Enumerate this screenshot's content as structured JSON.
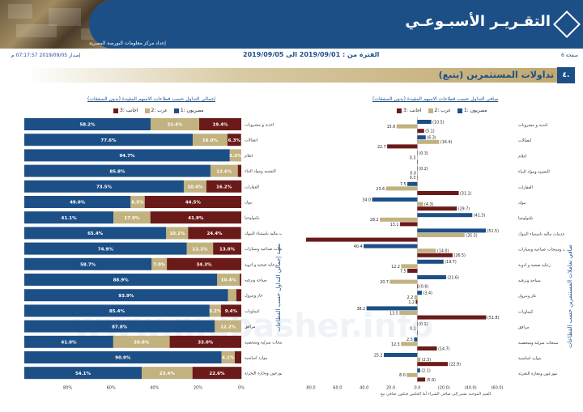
{
  "header": {
    "title": "التقـريـر الأسبـوعـي",
    "subtitle": "إعداد مركز معلومات البورصة المصرية",
    "period": "الفترة من : 2019/09/01 الى 2019/09/05",
    "issued": "إصدار 2019/09/05 07:17:57 م",
    "page": "صفحة 6"
  },
  "section": {
    "number": "٤.",
    "title": "تداولات المستثمرين (يتبع)"
  },
  "watermark": "www.mubasher.info",
  "footnote": "القيم الموجبة تشير إلى صافي الشراء أما العكس فيكون صافي بيع.",
  "left_vlabel": "نسبة إجمالي التداول حسب القطاعات",
  "right_vlabel": "صافي تعاملات المستثمرين حسب القطاعات",
  "colors": {
    "egyptians": "#1d4f87",
    "arabs": "#c2b280",
    "foreigners": "#6b1a1a"
  },
  "chart_data": [
    {
      "type": "bar",
      "title": "إجمالي التداول حسب قطاعات الاسهم المقيدة (بدون الصفقات)",
      "orientation": "horizontal",
      "stacked": true,
      "legend": [
        "مصريون :1",
        "عرب :2",
        "اجانب :3"
      ],
      "categories": [
        "اغذية و مشروبات",
        "اتصالات",
        "اعلام",
        "التشييد ومواد البناء",
        "العقارات",
        "بنوك",
        "تكنولوجيا",
        "خدمات مالية باستثناء البنوك",
        "خدمات ومنتجات صناعية وسيارات",
        "رعاية صحية و ادوية",
        "سياحة وترفيه",
        "غاز وبترول",
        "كيماويات",
        "مرافق",
        "منتجات منزلية وشخصية",
        "موارد اساسية",
        "موزعون وتجارة التجزئة"
      ],
      "series": [
        {
          "name": "مصريون :1",
          "values": [
            58.2,
            77.6,
            94.7,
            85.8,
            73.5,
            49.0,
            41.1,
            65.4,
            74.9,
            58.7,
            88.9,
            93.9,
            85.4,
            87.8,
            41.0,
            90.9,
            54.1
          ]
        },
        {
          "name": "عرب :2",
          "values": [
            22.4,
            16.0,
            5.3,
            12.6,
            10.4,
            6.5,
            17.0,
            10.1,
            12.1,
            7.0,
            10.4,
            3.8,
            5.2,
            12.2,
            26.0,
            6.1,
            23.4
          ]
        },
        {
          "name": "اجانب :3",
          "values": [
            19.4,
            6.3,
            0.0,
            1.6,
            16.2,
            44.5,
            41.9,
            24.4,
            13.0,
            34.3,
            0.7,
            2.3,
            9.4,
            0.0,
            33.0,
            3.0,
            22.6
          ]
        }
      ],
      "xticks": [
        "80%",
        "60%",
        "40%",
        "20%",
        "0%"
      ],
      "xlim": [
        0,
        100
      ]
    },
    {
      "type": "bar",
      "title": "صافي التداول حسب قطاعات الاسهم المقيدة (بدون الصفقات)",
      "orientation": "horizontal",
      "legend": [
        "مصريون :1",
        "عرب :2",
        "اجانب :3"
      ],
      "categories": [
        "اغذية و مشروبات",
        "اتصالات",
        "اعلام",
        "التشييد ومواد البناء",
        "العقارات",
        "بنوك",
        "تكنولوجيا",
        "خدمات مالية باستثناء البنوك",
        "خدمات ومنتجات صناعية وسيارات",
        "رعاية صحية و ادوية",
        "سياحة وترفيه",
        "غاز وبترول",
        "كيماويات",
        "مرافق",
        "منتجات منزلية وشخصية",
        "موارد اساسية",
        "موزعون وتجارة التجزئة"
      ],
      "series": [
        {
          "name": "مصريون :1",
          "values": [
            -10.5,
            -6.3,
            -0.3,
            -0.2,
            7.5,
            34.0,
            -41.3,
            -51.5,
            40.4,
            -19.7,
            -21.6,
            -3.4,
            38.2,
            -0.1,
            2.5,
            25.2,
            -2.1
          ]
        },
        {
          "name": "عرب :2",
          "values": [
            15.6,
            -16.4,
            0.3,
            0.0,
            23.6,
            -4.3,
            28.2,
            -35.5,
            -14.0,
            12.2,
            20.7,
            2.2,
            13.5,
            0.1,
            12.3,
            -2.3,
            8.0
          ]
        },
        {
          "name": "اجانب :3",
          "values": [
            -5.1,
            22.7,
            0.0,
            0.3,
            -31.1,
            -29.7,
            13.1,
            86.6,
            -26.5,
            7.5,
            -0.6,
            1.2,
            -51.8,
            0.0,
            -14.7,
            -22.9,
            -5.9
          ]
        }
      ],
      "value_labels": [
        [
          "(10.5)",
          "15.6",
          "(5.1)"
        ],
        [
          "(6.3)",
          "(16.4)",
          "22.7"
        ],
        [
          "(0.3)",
          "0.3",
          ""
        ],
        [
          "(0.2)",
          "0.0",
          "0.3"
        ],
        [
          "7.5",
          "23.6",
          "(31.1)"
        ],
        [
          "34.0",
          "(4.3)",
          "(29.7)"
        ],
        [
          "(41.3)",
          "28.2",
          "13.1"
        ],
        [
          "(51.5)",
          "(35.5)",
          "86.6"
        ],
        [
          "40.4",
          "(14.0)",
          "(26.5)"
        ],
        [
          "(19.7)",
          "12.2",
          "7.5"
        ],
        [
          "(21.6)",
          "20.7",
          "(0.6)"
        ],
        [
          "(3.4)",
          "2.2",
          "1.2"
        ],
        [
          "38.2",
          "13.5",
          "(51.8)"
        ],
        [
          "(0.1)",
          "0.1",
          ""
        ],
        [
          "2.5",
          "12.3",
          "(14.7)"
        ],
        [
          "25.2",
          "(2.3)",
          "(22.9)"
        ],
        [
          "(2.1)",
          "8.0",
          "(5.9)"
        ]
      ],
      "xticks": [
        "80.0",
        "60.0",
        "40.0",
        "20.0",
        "0.0",
        "(20.0)",
        "(40.0)",
        "(60.0)"
      ],
      "xlim": [
        -60,
        80
      ],
      "x_reversed": true
    }
  ]
}
